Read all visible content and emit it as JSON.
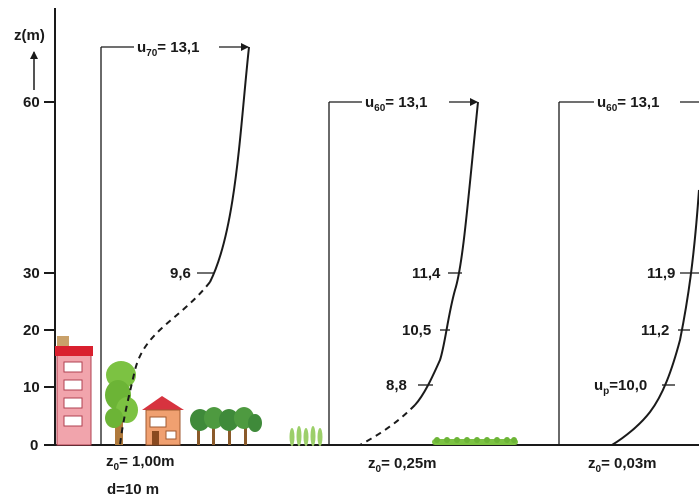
{
  "axis": {
    "label": "z(m)",
    "ticks": [
      "0",
      "10",
      "20",
      "30",
      "60"
    ]
  },
  "profiles": [
    {
      "top_label_main": "u",
      "top_label_sub": "70",
      "top_label_value": "= 13,1",
      "mid_labels": [
        "9,6"
      ],
      "roughness_main": "z",
      "roughness_sub": "0",
      "roughness_value": "= 1,00m",
      "extra_label": "d=10 m"
    },
    {
      "top_label_main": "u",
      "top_label_sub": "60",
      "top_label_value": "= 13,1",
      "mid_labels": [
        "11,4",
        "10,5",
        "8,8"
      ],
      "roughness_main": "z",
      "roughness_sub": "0",
      "roughness_value": "= 0,25m"
    },
    {
      "top_label_main": "u",
      "top_label_sub": "60",
      "top_label_value": "= 13,1",
      "mid_labels": [
        "11,9",
        "11,2"
      ],
      "low_label_main": "u",
      "low_label_sub": "p",
      "low_label_value": "=10,0",
      "roughness_main": "z",
      "roughness_sub": "0",
      "roughness_value": "= 0,03m"
    }
  ],
  "colors": {
    "line": "#1a1a1a",
    "building_wall": "#f1a4ac",
    "building_roof": "#d9202e",
    "tree_green": "#7cc242",
    "house_wall": "#f0a070",
    "house_roof": "#d7333f",
    "grass": "#9ccf6a"
  }
}
